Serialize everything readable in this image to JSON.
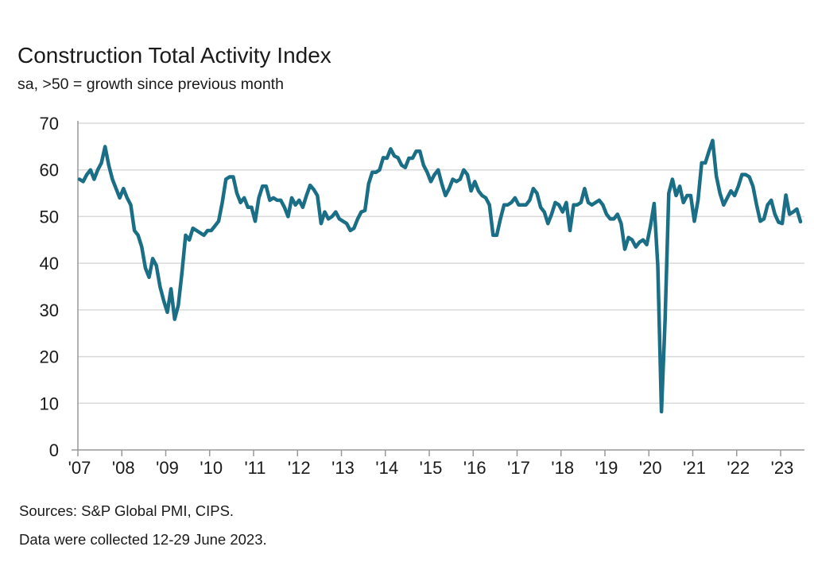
{
  "chart_data": {
    "type": "line",
    "title": "Construction Total Activity Index",
    "subtitle": "sa, >50 = growth since previous month",
    "xlabel": "",
    "ylabel": "",
    "ylim": [
      0,
      70
    ],
    "yticks": [
      "0",
      "10",
      "20",
      "30",
      "40",
      "50",
      "60",
      "70"
    ],
    "xticks": [
      "'07",
      "'08",
      "'09",
      "'10",
      "'11",
      "'12",
      "'13",
      "'14",
      "'15",
      "'16",
      "'17",
      "'18",
      "'19",
      "'20",
      "'21",
      "'22",
      "'23"
    ],
    "x_start": "2007-01",
    "x_end": "2023-06",
    "frequency": "monthly",
    "grid": "horizontal",
    "line_color": "#1a6e86",
    "series": [
      {
        "values": [
          58,
          57.5,
          59,
          60,
          58,
          60,
          61.5,
          65,
          61,
          58,
          56,
          54,
          56,
          54,
          52.5,
          47,
          46,
          43.5,
          39,
          37,
          41,
          39.5,
          35,
          32,
          29.5,
          34.5,
          28,
          31,
          38,
          46,
          45,
          47.5,
          47,
          46.5,
          46,
          47,
          47,
          48,
          49,
          53,
          58,
          58.5,
          58.5,
          55,
          53,
          54,
          52,
          52,
          49,
          54,
          56.5,
          56.5,
          53.5,
          54,
          53.5,
          53.5,
          52,
          50,
          54,
          52.5,
          53.5,
          52,
          54.5,
          56.7,
          55.8,
          54.5,
          48.5,
          51,
          49.5,
          50,
          51,
          49.5,
          49,
          48.5,
          47,
          47.5,
          49.5,
          51,
          51.3,
          57,
          59.5,
          59.5,
          60,
          62.6,
          62.5,
          64.5,
          63,
          62.6,
          61,
          60.5,
          62.5,
          62.5,
          64,
          64,
          61,
          59.5,
          57.5,
          59,
          60,
          57,
          54.5,
          56,
          58,
          57.5,
          58,
          60,
          59,
          55.5,
          57.5,
          55.5,
          54.5,
          54,
          52.5,
          46,
          46,
          49.5,
          52.5,
          52.5,
          53,
          54,
          52.5,
          52.5,
          52.5,
          53.5,
          56,
          55,
          52,
          51,
          48.5,
          50.5,
          53,
          52.5,
          51,
          53,
          47,
          52.5,
          52.5,
          53,
          56,
          53,
          52.5,
          53,
          53.5,
          52.5,
          50.5,
          49.5,
          49.5,
          50.5,
          48.5,
          43,
          45.5,
          45,
          43.5,
          44.5,
          45,
          44,
          48,
          52.8,
          39.5,
          8.2,
          28,
          55,
          58,
          54.5,
          56.5,
          53,
          54.5,
          54.5,
          49,
          53.5,
          61.5,
          61.5,
          64,
          66.3,
          58.7,
          55,
          52.5,
          54,
          55.5,
          54.5,
          56.5,
          59,
          59,
          58.5,
          56.5,
          52.5,
          49,
          49.5,
          52.5,
          53.5,
          50.5,
          48.8,
          48.5,
          54.6,
          50.5,
          51,
          51.6,
          48.9
        ]
      }
    ],
    "footnotes": [
      "Sources: S&P Global PMI, CIPS.",
      "Data were collected 12-29 June 2023."
    ]
  }
}
